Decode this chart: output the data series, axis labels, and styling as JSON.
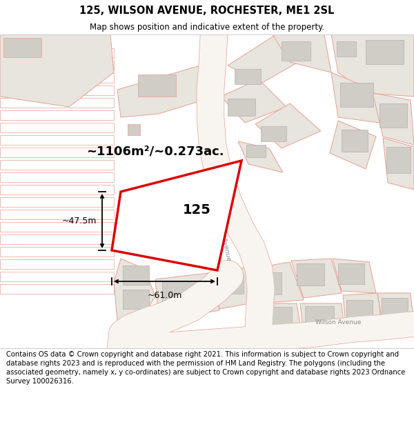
{
  "title": "125, WILSON AVENUE, ROCHESTER, ME1 2SL",
  "subtitle": "Map shows position and indicative extent of the property.",
  "footer": "Contains OS data © Crown copyright and database right 2021. This information is subject to Crown copyright and database rights 2023 and is reproduced with the permission of HM Land Registry. The polygons (including the associated geometry, namely x, y co-ordinates) are subject to Crown copyright and database rights 2023 Ordnance Survey 100026316.",
  "map_bg": "#faf8f5",
  "plot_fill": "#e8e4de",
  "building_fill": "#d0ccc6",
  "plot_outline": "#e8a090",
  "main_outline": "#dd0000",
  "road_fill": "#f0ece8",
  "label_area": "~1106m²/~0.273ac.",
  "label_number": "125",
  "label_width": "~61.0m",
  "label_height": "~47.5m",
  "road_label": "Wilson Avenue",
  "title_fontsize": 10.5,
  "subtitle_fontsize": 8.5,
  "footer_fontsize": 7.2
}
